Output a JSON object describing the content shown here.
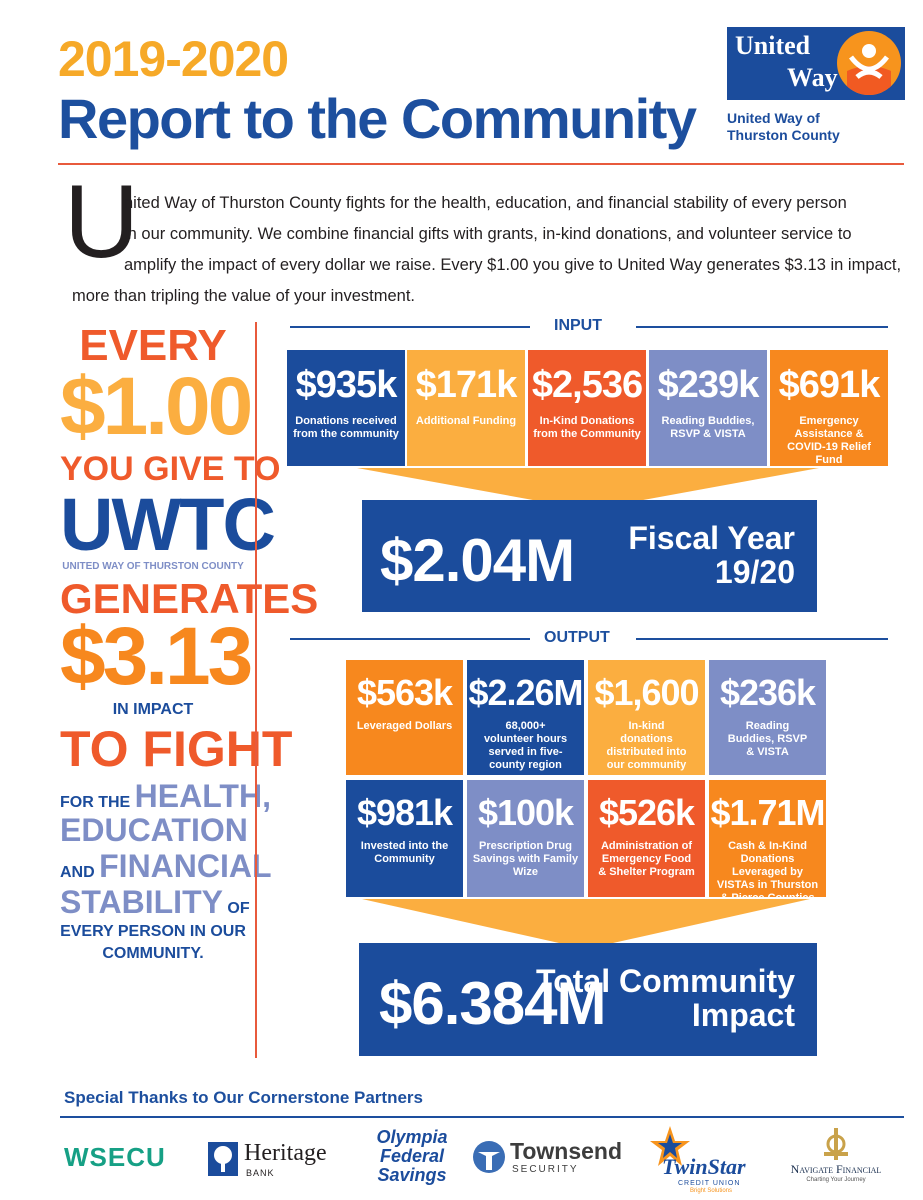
{
  "header": {
    "year": "2019-2020",
    "title": "Report to the Community",
    "logo_word1": "United",
    "logo_word2": "Way",
    "logo_sub1": "United Way of",
    "logo_sub2": "Thurston County"
  },
  "intro": {
    "dropcap": "U",
    "line1": "nited Way of Thurston County fights for the health, education, and financial stability of every person",
    "line2": "in our community. We combine financial gifts with grants, in-kind donations, and volunteer service to",
    "line3": "amplify the impact of every dollar we raise. Every $1.00 you give to United Way generates $3.13 in impact,",
    "line4": "more than tripling the value of your investment."
  },
  "left": {
    "every": "EVERY",
    "dollar": "$1.00",
    "you_give_to": "YOU GIVE TO",
    "uwtc": "UWTC",
    "uwtc_full": "UNITED WAY OF THURSTON COUNTY",
    "generates": "GENERATES",
    "impact_value": "$3.13",
    "in_impact": "IN IMPACT",
    "to_fight": "TO FIGHT",
    "for_the": "FOR THE",
    "health": "HEALTH,",
    "education": "EDUCATION",
    "and": "AND",
    "financial": "FINANCIAL",
    "stability": "STABILITY",
    "of": "OF",
    "every_person": "EVERY PERSON IN OUR",
    "community": "COMMUNITY."
  },
  "input": {
    "label": "INPUT",
    "tiles": [
      {
        "value": "$935k",
        "desc": "Donations received from the community"
      },
      {
        "value": "$171k",
        "desc": "Additional Funding"
      },
      {
        "value": "$2,536",
        "desc": "In-Kind Donations from the Community"
      },
      {
        "value": "$239k",
        "desc": "Reading Buddies, RSVP & VISTA"
      },
      {
        "value": "$691k",
        "desc": "Emergency Assistance & COVID-19 Relief Fund"
      }
    ],
    "total": {
      "value": "$2.04M",
      "label1": "Fiscal Year",
      "label2": "19/20"
    }
  },
  "output": {
    "label": "OUTPUT",
    "tiles": [
      {
        "value": "$563k",
        "desc": "Leveraged Dollars"
      },
      {
        "value": "$2.26M",
        "desc": "68,000+ volunteer hours served in five-county region"
      },
      {
        "value": "$1,600",
        "desc": "In-kind donations distributed into our community"
      },
      {
        "value": "$236k",
        "desc": "Reading Buddies, RSVP & VISTA"
      },
      {
        "value": "$981k",
        "desc": "Invested into the Community"
      },
      {
        "value": "$100k",
        "desc": "Prescription Drug Savings with Family Wize"
      },
      {
        "value": "$526k",
        "desc": "Administration of Emergency Food & Shelter Program"
      },
      {
        "value": "$1.71M",
        "desc": "Cash & In-Kind Donations Leveraged by VISTAs in Thurston & Pierce Counties"
      }
    ],
    "total": {
      "value": "$6.384M",
      "label1": "Total Community",
      "label2": "Impact"
    }
  },
  "partners": {
    "title": "Special Thanks to Our Cornerstone Partners",
    "wsecu": "WSECU",
    "heritage": "Heritage",
    "heritage_sub": "BANK",
    "olympia1": "Olympia",
    "olympia2": "Federal",
    "olympia3": "Savings",
    "townsend": "Townsend",
    "townsend_sub": "SECURITY",
    "twinstar": "TwinStar",
    "twinstar_sub": "CREDIT UNION",
    "twinstar_tag": "Bright Solutions",
    "navigate": "Navigate Financial",
    "navigate_tag": "Charting Your Journey"
  },
  "colors": {
    "blue": "#1b4c9c",
    "yellow": "#fbae40",
    "red": "#ef5a2b",
    "lavender": "#7e8ec6",
    "orange": "#f7881e",
    "wsecu_green": "#16a085"
  }
}
